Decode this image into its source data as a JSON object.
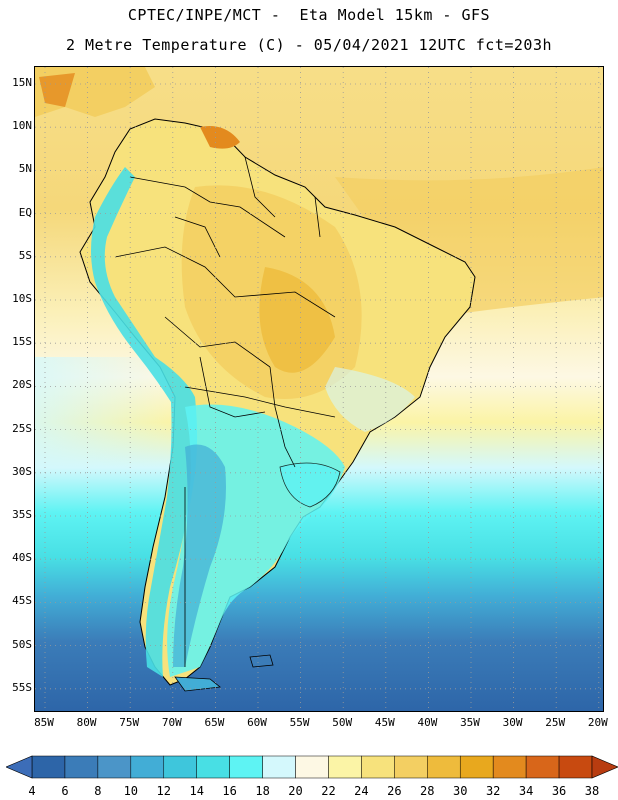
{
  "title": {
    "line1": "CPTEC/INPE/MCT -  Eta Model 15km - GFS",
    "line2": "2 Metre Temperature (C) - 05/04/2021 12UTC fct=203h"
  },
  "map": {
    "region": "South America",
    "lat_ticks": [
      "15N",
      "10N",
      "5N",
      "EQ",
      "5S",
      "10S",
      "15S",
      "20S",
      "25S",
      "30S",
      "35S",
      "40S",
      "45S",
      "50S",
      "55S"
    ],
    "lon_ticks": [
      "85W",
      "80W",
      "75W",
      "70W",
      "65W",
      "60W",
      "55W",
      "50W",
      "45W",
      "40W",
      "35W",
      "30W",
      "25W",
      "20W"
    ]
  },
  "colorbar": {
    "ticks": [
      "4",
      "6",
      "8",
      "10",
      "12",
      "14",
      "16",
      "18",
      "20",
      "22",
      "24",
      "26",
      "28",
      "30",
      "32",
      "34",
      "36",
      "38"
    ],
    "colors": [
      "#2d65a8",
      "#3b7cb8",
      "#4b95c8",
      "#42add6",
      "#3ec6dc",
      "#48dfe4",
      "#5ef3f3",
      "#d4f8fc",
      "#fdf8e4",
      "#fbf4a6",
      "#f7e27c",
      "#f3cf62",
      "#eebb3c",
      "#e8a81e",
      "#e38a1e",
      "#d8661a",
      "#c84a10"
    ],
    "under_color": "#3c6db8",
    "over_color": "#b83c10"
  }
}
